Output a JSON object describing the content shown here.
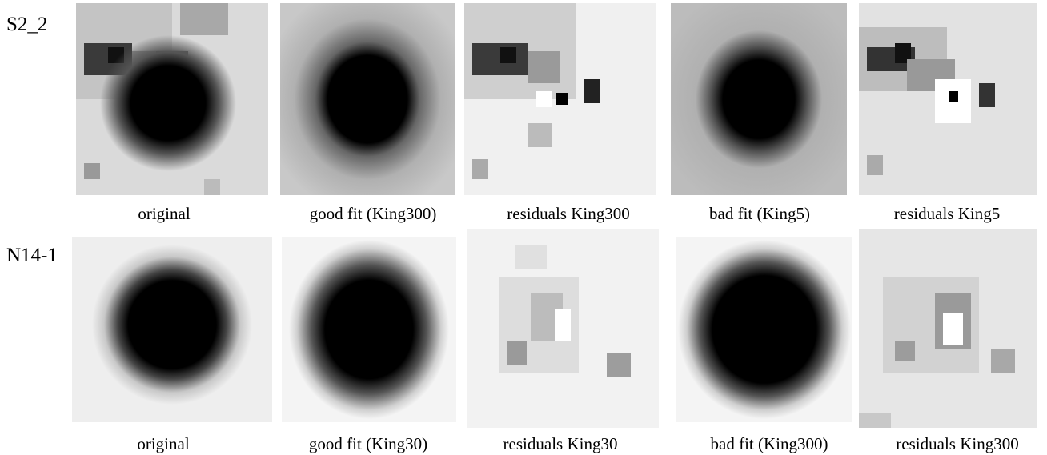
{
  "figure": {
    "rows": [
      {
        "label": "S2_2",
        "panels": [
          {
            "caption": "original",
            "content": "cluster image with neighbouring sources"
          },
          {
            "caption": "good fit (King300)",
            "content": "smooth model profile"
          },
          {
            "caption": "residuals King300",
            "content": "residual map"
          },
          {
            "caption": "bad fit (King5)",
            "content": "smooth model profile"
          },
          {
            "caption": "residuals King5",
            "content": "residual map"
          }
        ]
      },
      {
        "label": "N14-1",
        "panels": [
          {
            "caption": "original",
            "content": "cluster image"
          },
          {
            "caption": "good fit (King30)",
            "content": "smooth model profile"
          },
          {
            "caption": "residuals King30",
            "content": "residual map"
          },
          {
            "caption": "bad fit (King300)",
            "content": "smooth model profile"
          },
          {
            "caption": "residuals King300",
            "content": "residual map"
          }
        ]
      }
    ]
  }
}
